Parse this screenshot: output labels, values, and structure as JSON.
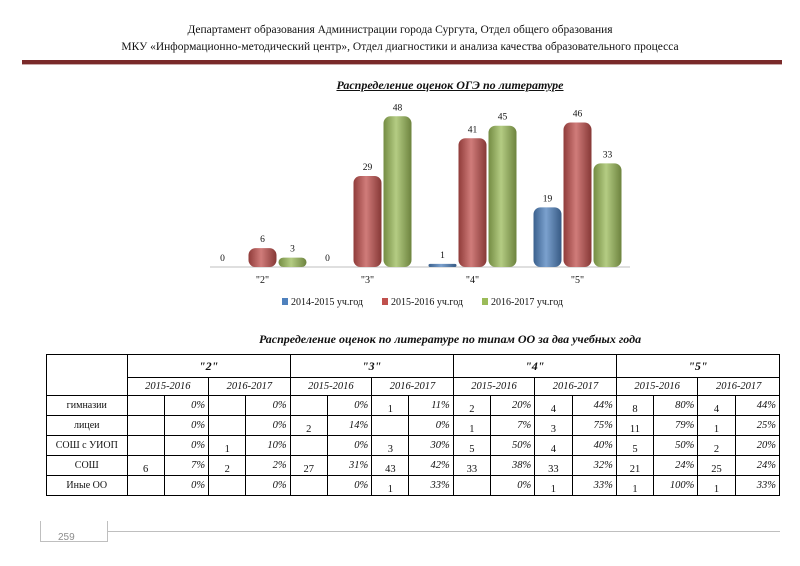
{
  "header": {
    "line1": "Департамент образования Администрации города Сургута, Отдел общего образования",
    "line2": "МКУ «Информационно-методический центр», Отдел диагностики и анализа качества образовательного процесса"
  },
  "chart_data": {
    "type": "bar",
    "title": "Распределение оценок ОГЭ по литературе",
    "categories": [
      "\"2\"",
      "\"3\"",
      "\"4\"",
      "\"5\""
    ],
    "series": [
      {
        "name": "2014-2015 уч.год",
        "color": "#4f81bd",
        "values": [
          0,
          0,
          1,
          19
        ]
      },
      {
        "name": "2015-2016 уч.год",
        "color": "#c0504d",
        "values": [
          6,
          29,
          41,
          46
        ]
      },
      {
        "name": "2016-2017 уч.год",
        "color": "#9bbb59",
        "values": [
          3,
          48,
          45,
          33
        ]
      }
    ],
    "ylim": [
      0,
      50
    ],
    "legend_position": "bottom",
    "data_labels": true
  },
  "table": {
    "title": "Распределение оценок по литературе по типам ОО за два учебных года",
    "grades": [
      "\"2\"",
      "\"3\"",
      "\"4\"",
      "\"5\""
    ],
    "years": [
      "2015-2016",
      "2016-2017"
    ],
    "rows": [
      {
        "label": "гимназии",
        "cells": [
          "",
          "0%",
          "",
          "0%",
          "",
          "0%",
          "1",
          "11%",
          "2",
          "20%",
          "4",
          "44%",
          "8",
          "80%",
          "4",
          "44%"
        ]
      },
      {
        "label": "лицеи",
        "cells": [
          "",
          "0%",
          "",
          "0%",
          "2",
          "14%",
          "",
          "0%",
          "1",
          "7%",
          "3",
          "75%",
          "11",
          "79%",
          "1",
          "25%"
        ]
      },
      {
        "label": "СОШ с УИОП",
        "cells": [
          "",
          "0%",
          "1",
          "10%",
          "",
          "0%",
          "3",
          "30%",
          "5",
          "50%",
          "4",
          "40%",
          "5",
          "50%",
          "2",
          "20%"
        ]
      },
      {
        "label": "СОШ",
        "cells": [
          "6",
          "7%",
          "2",
          "2%",
          "27",
          "31%",
          "43",
          "42%",
          "33",
          "38%",
          "33",
          "32%",
          "21",
          "24%",
          "25",
          "24%"
        ]
      },
      {
        "label": "Иные ОО",
        "cells": [
          "",
          "0%",
          "",
          "0%",
          "",
          "0%",
          "1",
          "33%",
          "",
          "0%",
          "1",
          "33%",
          "1",
          "100%",
          "1",
          "33%"
        ]
      }
    ]
  },
  "footer": {
    "page_number": "259"
  }
}
